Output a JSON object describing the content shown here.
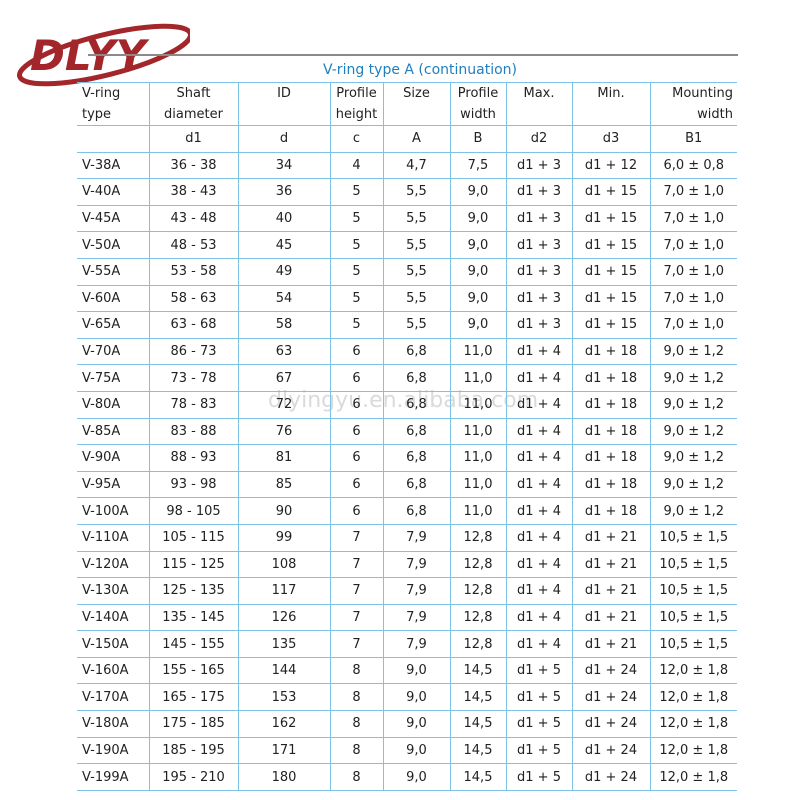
{
  "logo": {
    "text": "DLYY",
    "color": "#a3262a"
  },
  "title": "V-ring type A  (continuation)",
  "watermark": "dlyingyu.en.alibaba.com",
  "headers": [
    [
      "V-ring",
      "type"
    ],
    [
      "Shaft",
      "diameter"
    ],
    [
      "ID",
      ""
    ],
    [
      "Profile",
      "height"
    ],
    [
      "Size",
      ""
    ],
    [
      "Profile",
      "width"
    ],
    [
      "Max.",
      ""
    ],
    [
      "Min.",
      ""
    ],
    [
      "Mounting",
      "width"
    ]
  ],
  "symbols": [
    "",
    "d1",
    "d",
    "c",
    "A",
    "B",
    "d2",
    "d3",
    "B1"
  ],
  "rows": [
    [
      "V-38A",
      "36 - 38",
      "34",
      "4",
      "4,7",
      "7,5",
      "d1 + 3",
      "d1 + 12",
      "6,0 ± 0,8"
    ],
    [
      "V-40A",
      "38 - 43",
      "36",
      "5",
      "5,5",
      "9,0",
      "d1 + 3",
      "d1 + 15",
      "7,0 ± 1,0"
    ],
    [
      "V-45A",
      "43 - 48",
      "40",
      "5",
      "5,5",
      "9,0",
      "d1 + 3",
      "d1 + 15",
      "7,0 ± 1,0"
    ],
    [
      "V-50A",
      "48 - 53",
      "45",
      "5",
      "5,5",
      "9,0",
      "d1 + 3",
      "d1 + 15",
      "7,0 ± 1,0"
    ],
    [
      "V-55A",
      "53 - 58",
      "49",
      "5",
      "5,5",
      "9,0",
      "d1 + 3",
      "d1 + 15",
      "7,0 ± 1,0"
    ],
    [
      "V-60A",
      "58 - 63",
      "54",
      "5",
      "5,5",
      "9,0",
      "d1 + 3",
      "d1 + 15",
      "7,0 ± 1,0"
    ],
    [
      "V-65A",
      "63 - 68",
      "58",
      "5",
      "5,5",
      "9,0",
      "d1 + 3",
      "d1 + 15",
      "7,0 ± 1,0"
    ],
    [
      "V-70A",
      "86 - 73",
      "63",
      "6",
      "6,8",
      "11,0",
      "d1 + 4",
      "d1 + 18",
      "9,0 ± 1,2"
    ],
    [
      "V-75A",
      "73 - 78",
      "67",
      "6",
      "6,8",
      "11,0",
      "d1 + 4",
      "d1 + 18",
      "9,0 ± 1,2"
    ],
    [
      "V-80A",
      "78 - 83",
      "72",
      "6",
      "6,8",
      "11,0",
      "d1 + 4",
      "d1 + 18",
      "9,0 ± 1,2"
    ],
    [
      "V-85A",
      "83 - 88",
      "76",
      "6",
      "6,8",
      "11,0",
      "d1 + 4",
      "d1 + 18",
      "9,0 ± 1,2"
    ],
    [
      "V-90A",
      "88 - 93",
      "81",
      "6",
      "6,8",
      "11,0",
      "d1 + 4",
      "d1 + 18",
      "9,0 ± 1,2"
    ],
    [
      "V-95A",
      "93 - 98",
      "85",
      "6",
      "6,8",
      "11,0",
      "d1 + 4",
      "d1 + 18",
      "9,0 ± 1,2"
    ],
    [
      "V-100A",
      "98 - 105",
      "90",
      "6",
      "6,8",
      "11,0",
      "d1 + 4",
      "d1 + 18",
      "9,0 ± 1,2"
    ],
    [
      "V-110A",
      "105 - 115",
      "99",
      "7",
      "7,9",
      "12,8",
      "d1 + 4",
      "d1 + 21",
      "10,5 ± 1,5"
    ],
    [
      "V-120A",
      "115 - 125",
      "108",
      "7",
      "7,9",
      "12,8",
      "d1 + 4",
      "d1 + 21",
      "10,5 ± 1,5"
    ],
    [
      "V-130A",
      "125 - 135",
      "117",
      "7",
      "7,9",
      "12,8",
      "d1 + 4",
      "d1 + 21",
      "10,5 ± 1,5"
    ],
    [
      "V-140A",
      "135 - 145",
      "126",
      "7",
      "7,9",
      "12,8",
      "d1 + 4",
      "d1 + 21",
      "10,5 ± 1,5"
    ],
    [
      "V-150A",
      "145 - 155",
      "135",
      "7",
      "7,9",
      "12,8",
      "d1 + 4",
      "d1 + 21",
      "10,5 ± 1,5"
    ],
    [
      "V-160A",
      "155 - 165",
      "144",
      "8",
      "9,0",
      "14,5",
      "d1 + 5",
      "d1 + 24",
      "12,0 ± 1,8"
    ],
    [
      "V-170A",
      "165 - 175",
      "153",
      "8",
      "9,0",
      "14,5",
      "d1 + 5",
      "d1 + 24",
      "12,0 ± 1,8"
    ],
    [
      "V-180A",
      "175 - 185",
      "162",
      "8",
      "9,0",
      "14,5",
      "d1 + 5",
      "d1 + 24",
      "12,0 ± 1,8"
    ],
    [
      "V-190A",
      "185 - 195",
      "171",
      "8",
      "9,0",
      "14,5",
      "d1 + 5",
      "d1 + 24",
      "12,0 ± 1,8"
    ],
    [
      "V-199A",
      "195 - 210",
      "180",
      "8",
      "9,0",
      "14,5",
      "d1 + 5",
      "d1 + 24",
      "12,0 ± 1,8"
    ]
  ]
}
